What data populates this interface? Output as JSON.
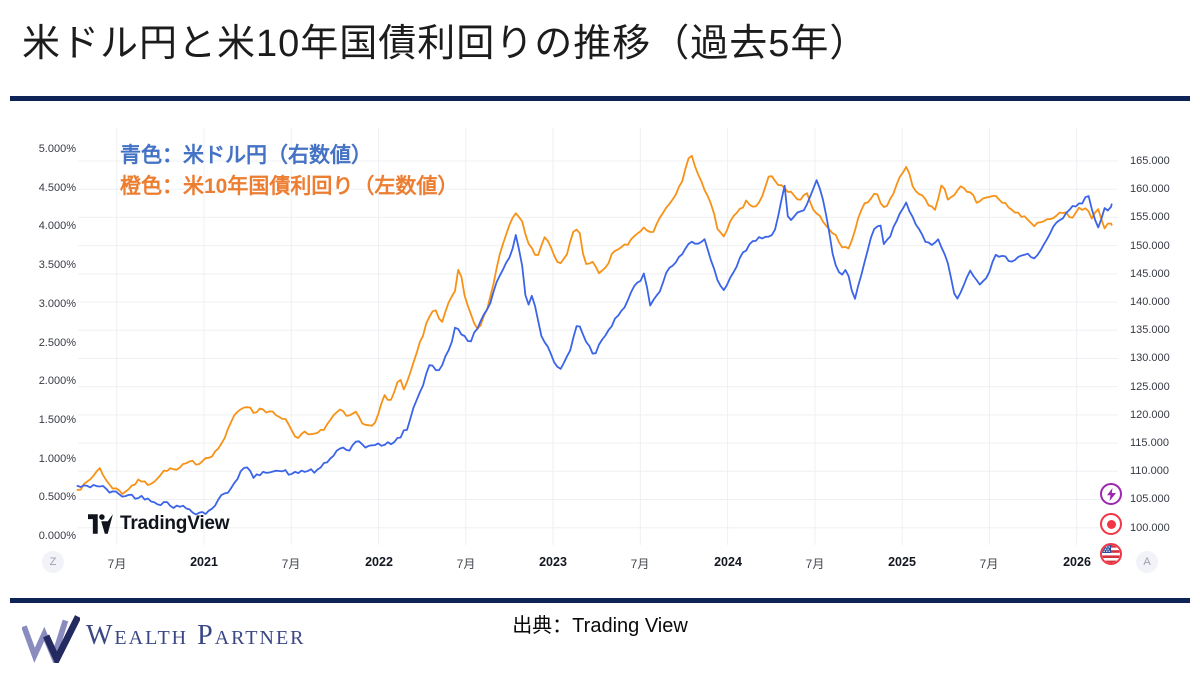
{
  "header": {
    "title": "米ドル円と米10年国債利回りの推移（過去5年）"
  },
  "legend": {
    "line1": "青色：米ドル円（右数値）",
    "line1_color": "#4472c4",
    "line2": "橙色：米10年国債利回り（左数値）",
    "line2_color": "#ed7d31"
  },
  "chart": {
    "watermark": "TradingView",
    "x_axis": {
      "left_bubble": "Z",
      "right_bubble": "A"
    },
    "price_scale_icons": [
      "lightning",
      "record-dot",
      "us-flag"
    ]
  },
  "footer": {
    "brand": "Wealth Partner",
    "source": "出典：Trading View"
  },
  "chart_data": {
    "type": "line",
    "x_unit": "months since 2021-01 (m=-6 → 2020-07, m=60 → 2026-01)",
    "x_domain": [
      -8.7,
      62.4
    ],
    "grid": true,
    "left_axis": {
      "title": "US 10Y yield (%)",
      "labels": [
        "5.000%",
        "4.500%",
        "4.000%",
        "3.500%",
        "3.000%",
        "2.500%",
        "2.000%",
        "1.500%",
        "1.000%",
        "0.500%",
        "0.000%"
      ],
      "range": [
        0,
        5
      ]
    },
    "right_axis": {
      "title": "USD/JPY",
      "labels": [
        "165.000",
        "160.000",
        "155.000",
        "150.000",
        "145.000",
        "140.000",
        "135.000",
        "130.000",
        "125.000",
        "120.000",
        "115.000",
        "110.000",
        "105.000",
        "100.000"
      ],
      "range": [
        100,
        165
      ]
    },
    "x_ticks": [
      {
        "label": "7月",
        "m": -6,
        "bold": false
      },
      {
        "label": "2021",
        "m": 0,
        "bold": true
      },
      {
        "label": "7月",
        "m": 6,
        "bold": false
      },
      {
        "label": "2022",
        "m": 12,
        "bold": true
      },
      {
        "label": "7月",
        "m": 18,
        "bold": false
      },
      {
        "label": "2023",
        "m": 24,
        "bold": true
      },
      {
        "label": "7月",
        "m": 30,
        "bold": false
      },
      {
        "label": "2024",
        "m": 36,
        "bold": true
      },
      {
        "label": "7月",
        "m": 42,
        "bold": false
      },
      {
        "label": "2025",
        "m": 48,
        "bold": true
      },
      {
        "label": "7月",
        "m": 54,
        "bold": false
      },
      {
        "label": "2026",
        "m": 60,
        "bold": true
      }
    ],
    "series": [
      {
        "name": "米10年国債利回り",
        "axis": "left",
        "color": "#f89217",
        "points": [
          [
            -8.7,
            0.63
          ],
          [
            -8.2,
            0.67
          ],
          [
            -7.9,
            0.7
          ],
          [
            -7.15,
            0.9
          ],
          [
            -6.8,
            0.72
          ],
          [
            -6.2,
            0.63
          ],
          [
            -5.6,
            0.56
          ],
          [
            -5.0,
            0.66
          ],
          [
            -4.4,
            0.72
          ],
          [
            -3.9,
            0.66
          ],
          [
            -3.2,
            0.78
          ],
          [
            -2.5,
            0.87
          ],
          [
            -1.9,
            0.84
          ],
          [
            -1.2,
            0.91
          ],
          [
            -0.5,
            0.93
          ],
          [
            0.2,
            1.04
          ],
          [
            0.9,
            1.12
          ],
          [
            1.5,
            1.3
          ],
          [
            2.2,
            1.58
          ],
          [
            2.9,
            1.72
          ],
          [
            3.4,
            1.6
          ],
          [
            3.9,
            1.66
          ],
          [
            4.5,
            1.62
          ],
          [
            5.2,
            1.5
          ],
          [
            5.8,
            1.45
          ],
          [
            6.4,
            1.22
          ],
          [
            6.9,
            1.3
          ],
          [
            7.5,
            1.25
          ],
          [
            8.1,
            1.34
          ],
          [
            8.7,
            1.52
          ],
          [
            9.3,
            1.62
          ],
          [
            9.9,
            1.5
          ],
          [
            10.4,
            1.6
          ],
          [
            10.9,
            1.43
          ],
          [
            11.5,
            1.46
          ],
          [
            12.0,
            1.58
          ],
          [
            12.4,
            1.8
          ],
          [
            12.9,
            1.76
          ],
          [
            13.4,
            2.02
          ],
          [
            13.8,
            1.86
          ],
          [
            14.4,
            2.2
          ],
          [
            14.9,
            2.5
          ],
          [
            15.4,
            2.78
          ],
          [
            15.9,
            2.95
          ],
          [
            16.3,
            2.76
          ],
          [
            16.8,
            2.98
          ],
          [
            17.3,
            3.15
          ],
          [
            17.55,
            3.48
          ],
          [
            18.0,
            2.98
          ],
          [
            18.5,
            2.78
          ],
          [
            18.9,
            2.64
          ],
          [
            19.4,
            2.88
          ],
          [
            19.9,
            3.25
          ],
          [
            20.4,
            3.72
          ],
          [
            20.9,
            3.98
          ],
          [
            21.4,
            4.23
          ],
          [
            21.9,
            4.12
          ],
          [
            22.4,
            3.72
          ],
          [
            22.9,
            3.62
          ],
          [
            23.4,
            3.88
          ],
          [
            23.9,
            3.72
          ],
          [
            24.4,
            3.48
          ],
          [
            24.9,
            3.58
          ],
          [
            25.4,
            3.92
          ],
          [
            25.8,
            3.97
          ],
          [
            26.2,
            3.48
          ],
          [
            26.7,
            3.58
          ],
          [
            27.2,
            3.35
          ],
          [
            27.7,
            3.48
          ],
          [
            28.2,
            3.68
          ],
          [
            28.7,
            3.74
          ],
          [
            29.2,
            3.76
          ],
          [
            29.8,
            3.9
          ],
          [
            30.3,
            4.0
          ],
          [
            30.8,
            3.88
          ],
          [
            31.3,
            4.05
          ],
          [
            31.8,
            4.24
          ],
          [
            32.3,
            4.32
          ],
          [
            32.9,
            4.6
          ],
          [
            33.45,
            4.97
          ],
          [
            33.8,
            4.72
          ],
          [
            34.3,
            4.56
          ],
          [
            34.8,
            4.32
          ],
          [
            35.3,
            3.96
          ],
          [
            35.8,
            3.9
          ],
          [
            36.3,
            4.08
          ],
          [
            36.8,
            4.16
          ],
          [
            37.3,
            4.3
          ],
          [
            37.8,
            4.24
          ],
          [
            38.3,
            4.32
          ],
          [
            38.9,
            4.66
          ],
          [
            39.3,
            4.56
          ],
          [
            39.8,
            4.5
          ],
          [
            40.4,
            4.44
          ],
          [
            40.9,
            4.32
          ],
          [
            41.4,
            4.4
          ],
          [
            41.9,
            4.24
          ],
          [
            42.4,
            4.14
          ],
          [
            42.9,
            3.94
          ],
          [
            43.4,
            3.86
          ],
          [
            43.9,
            3.72
          ],
          [
            44.4,
            3.68
          ],
          [
            44.9,
            4.04
          ],
          [
            45.4,
            4.24
          ],
          [
            45.9,
            4.4
          ],
          [
            46.3,
            4.44
          ],
          [
            46.8,
            4.22
          ],
          [
            47.3,
            4.4
          ],
          [
            47.8,
            4.6
          ],
          [
            48.25,
            4.8
          ],
          [
            48.7,
            4.54
          ],
          [
            49.3,
            4.42
          ],
          [
            49.8,
            4.28
          ],
          [
            50.3,
            4.24
          ],
          [
            50.75,
            4.58
          ],
          [
            51.2,
            4.34
          ],
          [
            51.7,
            4.44
          ],
          [
            52.2,
            4.52
          ],
          [
            52.7,
            4.44
          ],
          [
            53.2,
            4.28
          ],
          [
            53.7,
            4.36
          ],
          [
            54.2,
            4.44
          ],
          [
            54.7,
            4.32
          ],
          [
            55.2,
            4.3
          ],
          [
            55.7,
            4.2
          ],
          [
            56.2,
            4.14
          ],
          [
            56.7,
            4.1
          ],
          [
            57.2,
            4.02
          ],
          [
            57.7,
            4.12
          ],
          [
            58.2,
            4.06
          ],
          [
            58.7,
            4.14
          ],
          [
            59.2,
            4.2
          ],
          [
            59.7,
            4.12
          ],
          [
            60.2,
            4.22
          ],
          [
            60.7,
            4.24
          ],
          [
            61.1,
            4.12
          ],
          [
            61.5,
            4.24
          ],
          [
            61.9,
            4.0
          ],
          [
            62.2,
            4.08
          ],
          [
            62.4,
            4.02
          ]
        ]
      },
      {
        "name": "米ドル円",
        "axis": "right",
        "color": "#3b64e8",
        "points": [
          [
            -8.7,
            107.3
          ],
          [
            -8.0,
            107.0
          ],
          [
            -7.5,
            107.8
          ],
          [
            -6.8,
            106.8
          ],
          [
            -6.2,
            106.0
          ],
          [
            -5.5,
            105.8
          ],
          [
            -4.8,
            105.6
          ],
          [
            -4.2,
            105.4
          ],
          [
            -3.6,
            105.2
          ],
          [
            -3.0,
            104.8
          ],
          [
            -2.4,
            104.5
          ],
          [
            -1.8,
            103.8
          ],
          [
            -1.2,
            103.4
          ],
          [
            -0.5,
            103.1
          ],
          [
            0.2,
            102.7
          ],
          [
            1.0,
            105.0
          ],
          [
            1.6,
            106.2
          ],
          [
            2.5,
            110.2
          ],
          [
            2.9,
            110.7
          ],
          [
            3.3,
            108.9
          ],
          [
            4.0,
            109.2
          ],
          [
            4.8,
            110.9
          ],
          [
            5.5,
            109.9
          ],
          [
            6.2,
            109.3
          ],
          [
            7.0,
            110.2
          ],
          [
            7.8,
            109.9
          ],
          [
            8.5,
            111.4
          ],
          [
            9.3,
            114.2
          ],
          [
            10.0,
            113.8
          ],
          [
            10.5,
            115.0
          ],
          [
            11.0,
            113.6
          ],
          [
            11.8,
            115.2
          ],
          [
            12.5,
            114.4
          ],
          [
            13.3,
            115.6
          ],
          [
            14.0,
            117.6
          ],
          [
            14.6,
            122.6
          ],
          [
            15.0,
            125.2
          ],
          [
            15.6,
            129.8
          ],
          [
            16.1,
            127.2
          ],
          [
            16.8,
            131.2
          ],
          [
            17.3,
            135.6
          ],
          [
            17.8,
            134.6
          ],
          [
            18.3,
            132.2
          ],
          [
            18.8,
            135.2
          ],
          [
            19.5,
            139.2
          ],
          [
            20.3,
            144.6
          ],
          [
            21.0,
            148.6
          ],
          [
            21.45,
            151.8
          ],
          [
            21.8,
            147.4
          ],
          [
            22.2,
            139.2
          ],
          [
            22.6,
            141.6
          ],
          [
            23.2,
            134.2
          ],
          [
            23.8,
            131.2
          ],
          [
            24.4,
            127.6
          ],
          [
            25.2,
            131.4
          ],
          [
            25.7,
            136.8
          ],
          [
            26.3,
            133.2
          ],
          [
            26.8,
            130.8
          ],
          [
            27.5,
            134.2
          ],
          [
            28.3,
            137.6
          ],
          [
            29.0,
            139.6
          ],
          [
            29.8,
            143.2
          ],
          [
            30.3,
            145.0
          ],
          [
            30.7,
            138.6
          ],
          [
            31.3,
            141.8
          ],
          [
            32.0,
            146.2
          ],
          [
            32.7,
            147.6
          ],
          [
            33.3,
            149.6
          ],
          [
            34.4,
            151.7
          ],
          [
            34.8,
            147.6
          ],
          [
            35.3,
            143.2
          ],
          [
            35.8,
            141.2
          ],
          [
            36.3,
            144.6
          ],
          [
            37.0,
            148.2
          ],
          [
            37.8,
            150.6
          ],
          [
            38.5,
            151.6
          ],
          [
            39.3,
            153.2
          ],
          [
            39.95,
            160.2
          ],
          [
            40.2,
            153.2
          ],
          [
            40.7,
            156.0
          ],
          [
            41.3,
            157.2
          ],
          [
            42.15,
            161.6
          ],
          [
            42.8,
            155.2
          ],
          [
            43.3,
            147.2
          ],
          [
            43.8,
            144.6
          ],
          [
            44.2,
            146.2
          ],
          [
            44.7,
            140.6
          ],
          [
            45.3,
            146.2
          ],
          [
            46.0,
            152.6
          ],
          [
            46.5,
            154.6
          ],
          [
            46.8,
            150.2
          ],
          [
            47.5,
            153.6
          ],
          [
            48.2,
            157.9
          ],
          [
            48.7,
            155.6
          ],
          [
            49.3,
            152.2
          ],
          [
            50.0,
            149.6
          ],
          [
            50.5,
            150.6
          ],
          [
            51.2,
            146.2
          ],
          [
            51.7,
            140.8
          ],
          [
            52.2,
            143.6
          ],
          [
            52.7,
            145.6
          ],
          [
            53.2,
            142.9
          ],
          [
            53.8,
            144.6
          ],
          [
            54.5,
            148.6
          ],
          [
            55.2,
            147.2
          ],
          [
            55.8,
            147.0
          ],
          [
            56.5,
            148.1
          ],
          [
            57.2,
            147.6
          ],
          [
            57.8,
            150.1
          ],
          [
            58.3,
            152.6
          ],
          [
            58.8,
            153.6
          ],
          [
            59.3,
            155.6
          ],
          [
            59.8,
            156.6
          ],
          [
            60.3,
            157.1
          ],
          [
            60.8,
            158.8
          ],
          [
            61.2,
            155.1
          ],
          [
            61.5,
            152.7
          ],
          [
            61.9,
            156.1
          ],
          [
            62.2,
            155.6
          ],
          [
            62.4,
            157.3
          ]
        ]
      }
    ]
  }
}
